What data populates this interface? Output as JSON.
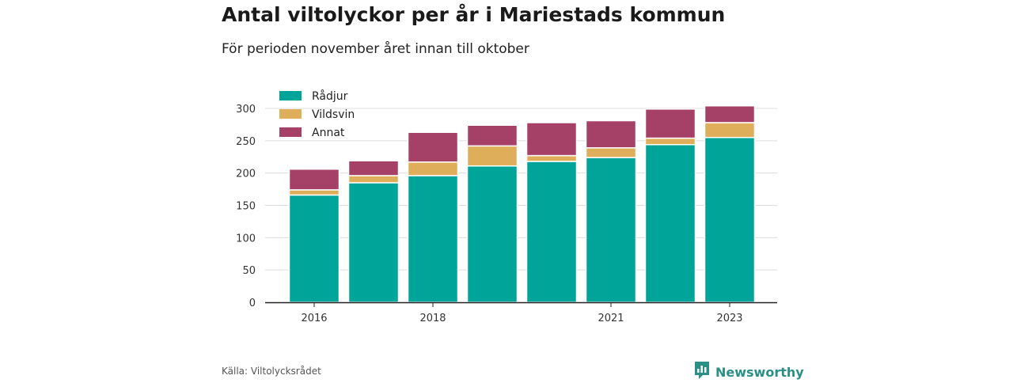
{
  "title": "Antal viltolyckor per år i Mariestads kommun",
  "subtitle": "För perioden november året innan till oktober",
  "source": "Källa: Viltolycksrådet",
  "brand": {
    "name": "Newsworthy",
    "icon": "newsworthy-logo-icon",
    "color": "#2a8f84"
  },
  "chart_data": {
    "type": "bar",
    "stacked": true,
    "categories": [
      "2016",
      "2017",
      "2018",
      "2019",
      "2020",
      "2021",
      "2022",
      "2023"
    ],
    "x_tick_labels": [
      "2016",
      "",
      "2018",
      "",
      "",
      "2021",
      "",
      "2023"
    ],
    "series": [
      {
        "name": "Rådjur",
        "color": "#00a499",
        "values": [
          166,
          185,
          196,
          211,
          218,
          224,
          244,
          255
        ]
      },
      {
        "name": "Vildsvin",
        "color": "#dfae5a",
        "values": [
          8,
          11,
          21,
          31,
          9,
          15,
          10,
          23
        ]
      },
      {
        "name": "Annat",
        "color": "#a54067",
        "values": [
          32,
          23,
          46,
          32,
          51,
          42,
          45,
          26
        ]
      }
    ],
    "ylim": [
      0,
      300
    ],
    "yticks": [
      0,
      50,
      100,
      150,
      200,
      250,
      300
    ],
    "grid": true,
    "legend_position": "top-left"
  }
}
